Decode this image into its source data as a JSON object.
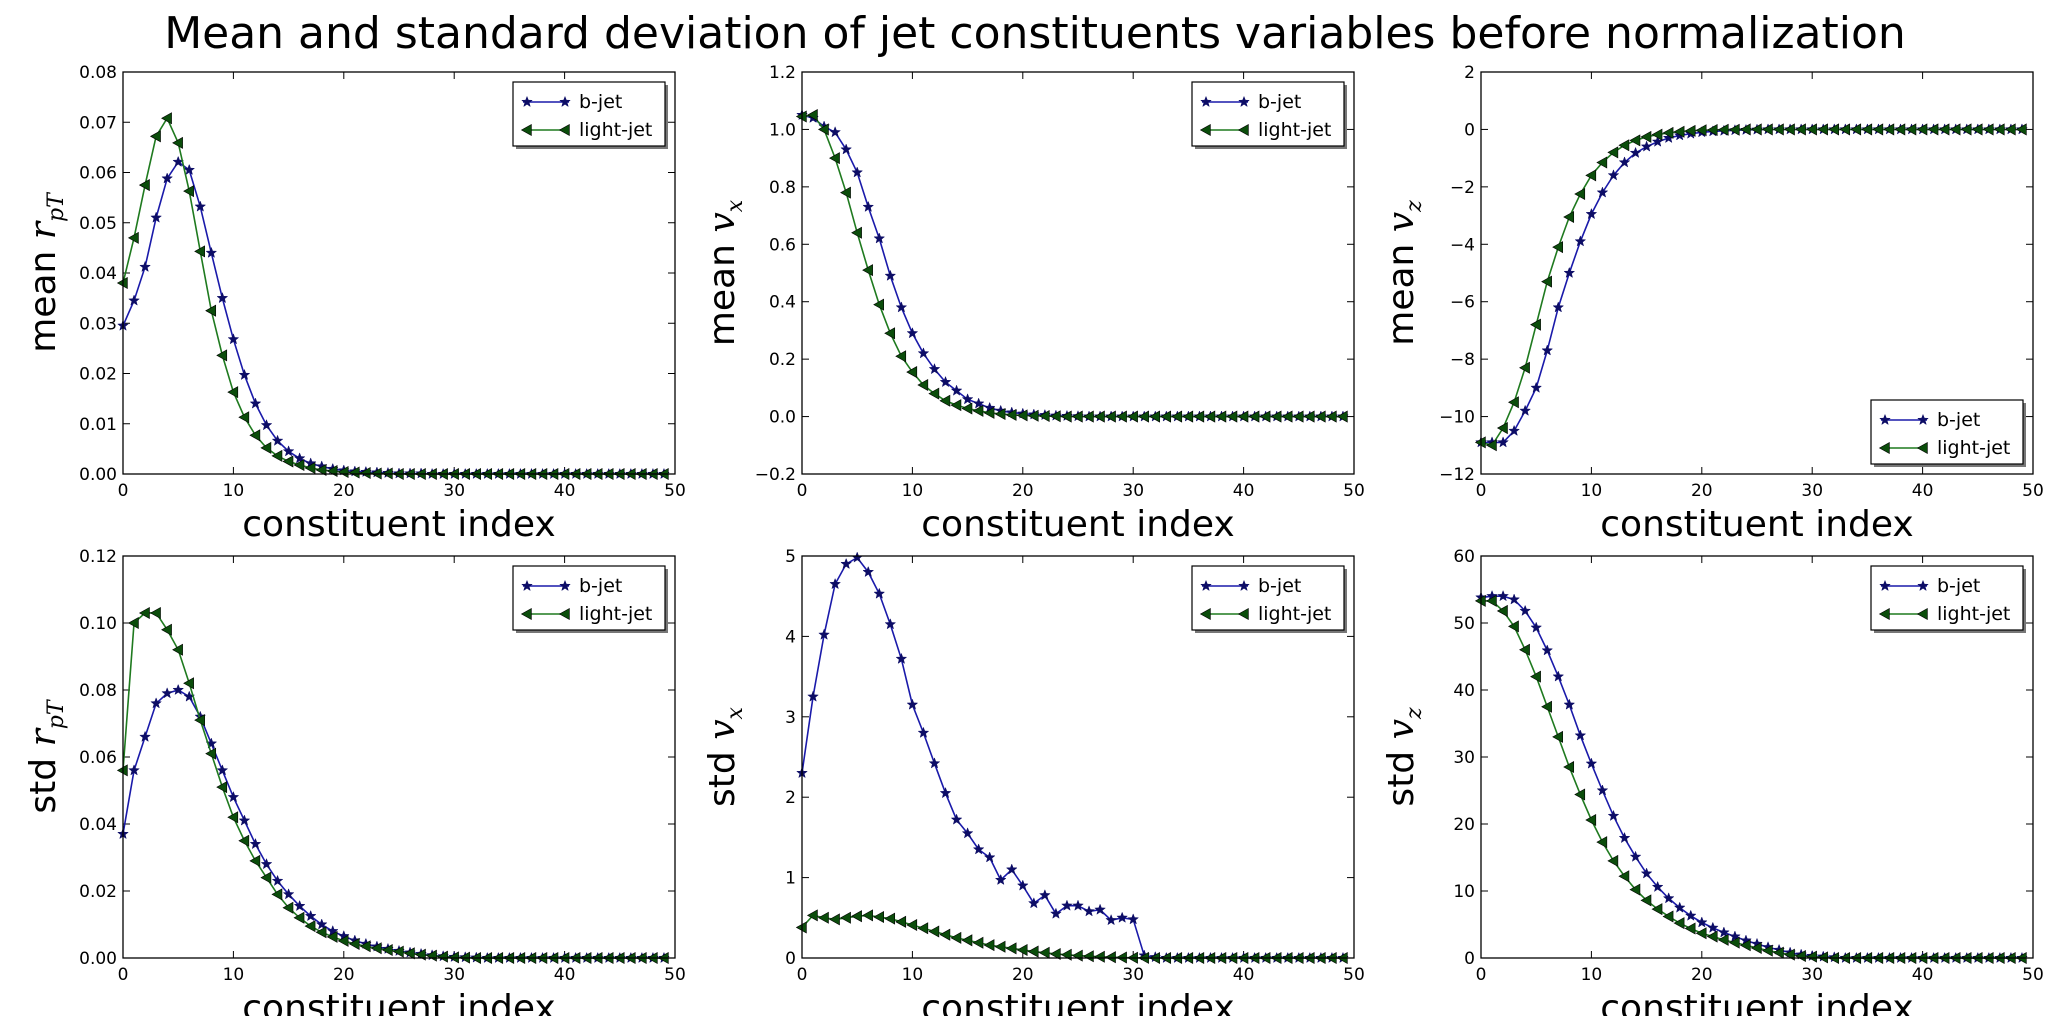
{
  "title": "Mean and standard deviation of jet constituents variables before normalization",
  "colors": {
    "b_jet": "#1a1aaa",
    "light_jet": "#1f7a1f",
    "marker_b": "#0d0d66",
    "marker_light": "#0b4d0b"
  },
  "chart_data": [
    {
      "type": "line",
      "ylabel_prefix": "mean",
      "ylabel_symbol": "r",
      "ylabel_sub": "pT",
      "xlabel": "constituent index",
      "xlim": [
        0,
        50
      ],
      "ylim": [
        0,
        0.08
      ],
      "xticks": [
        "0",
        "10",
        "20",
        "30",
        "40",
        "50"
      ],
      "yticks": [
        "0.00",
        "0.01",
        "0.02",
        "0.03",
        "0.04",
        "0.05",
        "0.06",
        "0.07",
        "0.08"
      ],
      "legend": "top-right",
      "series": [
        {
          "name": "b-jet",
          "values": [
            0.0295,
            0.0345,
            0.0412,
            0.051,
            0.0588,
            0.0621,
            0.0605,
            0.0532,
            0.044,
            0.035,
            0.0268,
            0.0197,
            0.014,
            0.0097,
            0.0066,
            0.0045,
            0.0031,
            0.0021,
            0.0015,
            0.001,
            0.0007,
            0.0005,
            0.0004,
            0.0003,
            0.0002,
            0.0001,
            0.0001,
            0.0001,
            0,
            0,
            0,
            0,
            0,
            0,
            0,
            0,
            0,
            0,
            0,
            0,
            0,
            0,
            0,
            0,
            0,
            0,
            0,
            0,
            0,
            0
          ]
        },
        {
          "name": "light-jet",
          "values": [
            0.038,
            0.047,
            0.0575,
            0.0672,
            0.0708,
            0.0659,
            0.0563,
            0.0443,
            0.0325,
            0.0236,
            0.0163,
            0.0113,
            0.0077,
            0.0052,
            0.0036,
            0.0025,
            0.0018,
            0.0012,
            0.0008,
            0.0006,
            0.0004,
            0.0003,
            0.0002,
            0.0001,
            0.0001,
            0,
            0,
            0,
            0,
            0,
            0,
            0,
            0,
            0,
            0,
            0,
            0,
            0,
            0,
            0,
            0,
            0,
            0,
            0,
            0,
            0,
            0,
            0,
            0,
            0
          ]
        }
      ]
    },
    {
      "type": "line",
      "ylabel_prefix": "mean",
      "ylabel_symbol": "v",
      "ylabel_sub": "x",
      "xlabel": "constituent index",
      "xlim": [
        0,
        50
      ],
      "ylim": [
        -0.2,
        1.2
      ],
      "xticks": [
        "0",
        "10",
        "20",
        "30",
        "40",
        "50"
      ],
      "yticks": [
        "−0.2",
        "0.0",
        "0.2",
        "0.4",
        "0.6",
        "0.8",
        "1.0",
        "1.2"
      ],
      "legend": "top-right",
      "series": [
        {
          "name": "b-jet",
          "values": [
            1.05,
            1.04,
            1.01,
            0.99,
            0.93,
            0.85,
            0.73,
            0.62,
            0.49,
            0.38,
            0.29,
            0.22,
            0.165,
            0.12,
            0.09,
            0.06,
            0.045,
            0.03,
            0.02,
            0.014,
            0.01,
            0.007,
            0.005,
            0.003,
            0.002,
            0.001,
            0,
            0,
            0,
            0,
            0,
            0,
            0,
            0,
            0,
            0,
            0,
            0,
            0,
            0,
            0,
            0,
            0,
            0,
            0,
            0,
            0,
            0,
            0,
            0
          ]
        },
        {
          "name": "light-jet",
          "values": [
            1.045,
            1.05,
            1.0,
            0.9,
            0.78,
            0.64,
            0.51,
            0.39,
            0.29,
            0.21,
            0.155,
            0.11,
            0.08,
            0.055,
            0.04,
            0.028,
            0.02,
            0.013,
            0.009,
            0.006,
            0.004,
            0.003,
            0.002,
            0.001,
            0,
            0,
            0,
            0,
            0,
            0,
            0,
            0,
            0,
            0,
            0,
            0,
            0,
            0,
            0,
            0,
            0,
            0,
            0,
            0,
            0,
            0,
            0,
            0,
            0,
            0
          ]
        }
      ]
    },
    {
      "type": "line",
      "ylabel_prefix": "mean",
      "ylabel_symbol": "v",
      "ylabel_sub": "z",
      "xlabel": "constituent index",
      "xlim": [
        0,
        50
      ],
      "ylim": [
        -12,
        2
      ],
      "xticks": [
        "0",
        "10",
        "20",
        "30",
        "40",
        "50"
      ],
      "yticks": [
        "−12",
        "−10",
        "−8",
        "−6",
        "−4",
        "−2",
        "0",
        "2"
      ],
      "legend": "bottom-right",
      "series": [
        {
          "name": "b-jet",
          "values": [
            -10.9,
            -10.9,
            -10.9,
            -10.5,
            -9.8,
            -9.0,
            -7.7,
            -6.2,
            -5.0,
            -3.9,
            -2.95,
            -2.2,
            -1.6,
            -1.15,
            -0.82,
            -0.6,
            -0.43,
            -0.3,
            -0.21,
            -0.15,
            -0.1,
            -0.07,
            -0.05,
            -0.03,
            -0.02,
            -0.01,
            0,
            0,
            0,
            0,
            0,
            0,
            0,
            0,
            0,
            0,
            0,
            0,
            0,
            0,
            0,
            0,
            0,
            0,
            0,
            0,
            0,
            0,
            0,
            0
          ]
        },
        {
          "name": "light-jet",
          "values": [
            -10.9,
            -11.0,
            -10.4,
            -9.5,
            -8.3,
            -6.8,
            -5.3,
            -4.1,
            -3.05,
            -2.25,
            -1.6,
            -1.15,
            -0.8,
            -0.55,
            -0.38,
            -0.26,
            -0.18,
            -0.12,
            -0.08,
            -0.05,
            -0.03,
            -0.02,
            -0.01,
            -0.01,
            0,
            0,
            0,
            0,
            0,
            0,
            0,
            0,
            0,
            0,
            0,
            0,
            0,
            0,
            0,
            0,
            0,
            0,
            0,
            0,
            0,
            0,
            0,
            0,
            0,
            0
          ]
        }
      ]
    },
    {
      "type": "line",
      "ylabel_prefix": "std",
      "ylabel_symbol": "r",
      "ylabel_sub": "pT",
      "xlabel": "constituent index",
      "xlim": [
        0,
        50
      ],
      "ylim": [
        0,
        0.12
      ],
      "xticks": [
        "0",
        "10",
        "20",
        "30",
        "40",
        "50"
      ],
      "yticks": [
        "0.00",
        "0.02",
        "0.04",
        "0.06",
        "0.08",
        "0.10",
        "0.12"
      ],
      "legend": "top-right",
      "series": [
        {
          "name": "b-jet",
          "values": [
            0.037,
            0.056,
            0.066,
            0.076,
            0.079,
            0.08,
            0.078,
            0.072,
            0.064,
            0.056,
            0.048,
            0.041,
            0.034,
            0.028,
            0.023,
            0.019,
            0.0155,
            0.0125,
            0.01,
            0.008,
            0.0065,
            0.0052,
            0.0042,
            0.0034,
            0.0027,
            0.0021,
            0.0016,
            0.0012,
            0.0008,
            0.0005,
            0.0003,
            0.0002,
            0.0001,
            0,
            0,
            0,
            0,
            0,
            0,
            0,
            0,
            0,
            0,
            0,
            0,
            0,
            0,
            0,
            0,
            0
          ]
        },
        {
          "name": "light-jet",
          "values": [
            0.056,
            0.1,
            0.103,
            0.103,
            0.098,
            0.092,
            0.082,
            0.071,
            0.061,
            0.051,
            0.042,
            0.035,
            0.029,
            0.024,
            0.019,
            0.015,
            0.012,
            0.0095,
            0.0077,
            0.0063,
            0.0051,
            0.0042,
            0.0035,
            0.0029,
            0.0024,
            0.0019,
            0.0014,
            0.001,
            0.0007,
            0.0004,
            0.0002,
            0.0001,
            0,
            0,
            0,
            0,
            0,
            0,
            0,
            0,
            0,
            0,
            0,
            0,
            0,
            0,
            0,
            0,
            0,
            0
          ]
        }
      ]
    },
    {
      "type": "line",
      "ylabel_prefix": "std",
      "ylabel_symbol": "v",
      "ylabel_sub": "x",
      "xlabel": "constituent index",
      "xlim": [
        0,
        50
      ],
      "ylim": [
        0,
        5
      ],
      "xticks": [
        "0",
        "10",
        "20",
        "30",
        "40",
        "50"
      ],
      "yticks": [
        "0",
        "1",
        "2",
        "3",
        "4",
        "5"
      ],
      "legend": "top-right",
      "series": [
        {
          "name": "b-jet",
          "values": [
            2.3,
            3.25,
            4.02,
            4.65,
            4.9,
            4.98,
            4.8,
            4.53,
            4.15,
            3.72,
            3.15,
            2.8,
            2.42,
            2.05,
            1.72,
            1.55,
            1.35,
            1.25,
            0.97,
            1.1,
            0.9,
            0.68,
            0.78,
            0.55,
            0.65,
            0.65,
            0.58,
            0.6,
            0.47,
            0.5,
            0.48,
            0.03,
            0.01,
            0,
            0,
            0,
            0,
            0,
            0,
            0,
            0,
            0,
            0,
            0,
            0,
            0,
            0,
            0,
            0,
            0
          ]
        },
        {
          "name": "light-jet",
          "values": [
            0.38,
            0.53,
            0.5,
            0.48,
            0.5,
            0.52,
            0.53,
            0.51,
            0.49,
            0.45,
            0.41,
            0.37,
            0.33,
            0.29,
            0.25,
            0.22,
            0.19,
            0.16,
            0.14,
            0.12,
            0.1,
            0.08,
            0.065,
            0.05,
            0.04,
            0.03,
            0.022,
            0.015,
            0.01,
            0.006,
            0.003,
            0.001,
            0,
            0,
            0,
            0,
            0,
            0,
            0,
            0,
            0,
            0,
            0,
            0,
            0,
            0,
            0,
            0,
            0,
            0
          ]
        }
      ]
    },
    {
      "type": "line",
      "ylabel_prefix": "std",
      "ylabel_symbol": "v",
      "ylabel_sub": "z",
      "xlabel": "constituent index",
      "xlim": [
        0,
        50
      ],
      "ylim": [
        0,
        60
      ],
      "xticks": [
        "0",
        "10",
        "20",
        "30",
        "40",
        "50"
      ],
      "yticks": [
        "0",
        "10",
        "20",
        "30",
        "40",
        "50",
        "60"
      ],
      "legend": "top-right",
      "series": [
        {
          "name": "b-jet",
          "values": [
            53.8,
            54.0,
            54.0,
            53.5,
            51.8,
            49.3,
            45.9,
            42.0,
            37.8,
            33.2,
            29.0,
            25.0,
            21.2,
            17.9,
            15.1,
            12.6,
            10.6,
            8.9,
            7.5,
            6.3,
            5.3,
            4.5,
            3.8,
            3.2,
            2.6,
            2.1,
            1.6,
            1.2,
            0.8,
            0.5,
            0.3,
            0.2,
            0.1,
            0,
            0,
            0,
            0,
            0,
            0,
            0,
            0,
            0,
            0,
            0,
            0,
            0,
            0,
            0,
            0,
            0
          ]
        },
        {
          "name": "light-jet",
          "values": [
            53.3,
            53.3,
            51.8,
            49.5,
            46.0,
            42.0,
            37.5,
            33.0,
            28.5,
            24.4,
            20.6,
            17.3,
            14.5,
            12.2,
            10.2,
            8.6,
            7.3,
            6.2,
            5.2,
            4.4,
            3.7,
            3.2,
            2.7,
            2.3,
            1.9,
            1.5,
            1.1,
            0.8,
            0.5,
            0.3,
            0.2,
            0.1,
            0,
            0,
            0,
            0,
            0,
            0,
            0,
            0,
            0,
            0,
            0,
            0,
            0,
            0,
            0,
            0,
            0,
            0
          ]
        }
      ]
    }
  ]
}
